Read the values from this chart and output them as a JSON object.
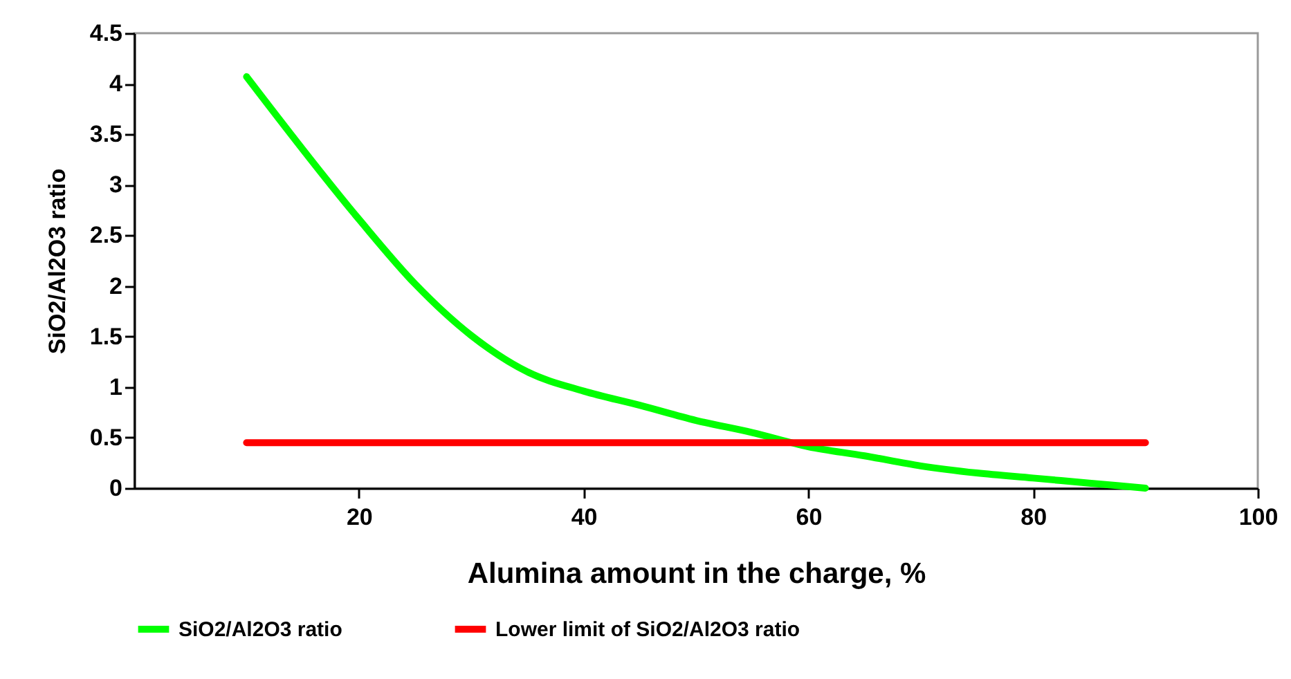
{
  "chart_data": {
    "type": "line",
    "xlabel": "Alumina amount in the charge, %",
    "ylabel": "SiO2/Al2O3 ratio",
    "xlim": [
      0,
      100
    ],
    "xticks": [
      20,
      40,
      60,
      80,
      100
    ],
    "ylim": [
      0,
      4.5
    ],
    "yticks": [
      0,
      0.5,
      1,
      1.5,
      2,
      2.5,
      3,
      3.5,
      4,
      4.5
    ],
    "grid": false,
    "legend": "bottom",
    "marker": "none",
    "line_style": "solid",
    "series": [
      {
        "name": "SiO2/Al2O3 ratio",
        "color": "#00ff00",
        "x": [
          10,
          20,
          25,
          30,
          35,
          40,
          45,
          50,
          55,
          60,
          65,
          70,
          75,
          80,
          85,
          90
        ],
        "values": [
          4.07,
          2.66,
          2.02,
          1.51,
          1.15,
          0.96,
          0.82,
          0.67,
          0.55,
          0.41,
          0.32,
          0.22,
          0.15,
          0.1,
          0.05,
          0
        ]
      },
      {
        "name": "Lower limit of SiO2/Al2O3 ratio",
        "color": "#ff0000",
        "x": [
          10,
          90
        ],
        "values": [
          0.45,
          0.45
        ]
      }
    ]
  }
}
